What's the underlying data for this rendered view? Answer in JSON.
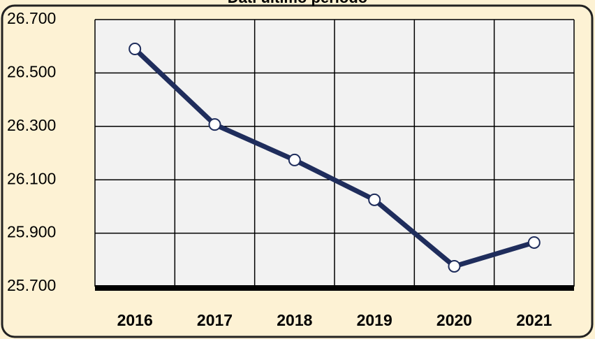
{
  "chart_data": {
    "type": "line",
    "title": "Dati ultimo periodo",
    "categories": [
      "2016",
      "2017",
      "2018",
      "2019",
      "2020",
      "2021"
    ],
    "series": [
      {
        "name": "Dati ultimo periodo",
        "color": "#1f2d5c",
        "values": [
          26590,
          26307,
          26174,
          26025,
          25776,
          25865
        ]
      }
    ],
    "ylim": [
      25700,
      26700
    ],
    "yticks": [
      {
        "value": 25700,
        "label": "25.700"
      },
      {
        "value": 25900,
        "label": "25.900"
      },
      {
        "value": 26100,
        "label": "26.100"
      },
      {
        "value": 26300,
        "label": "26.300"
      },
      {
        "value": 26500,
        "label": "26.500"
      },
      {
        "value": 26700,
        "label": "26.700"
      }
    ],
    "grid": true
  }
}
